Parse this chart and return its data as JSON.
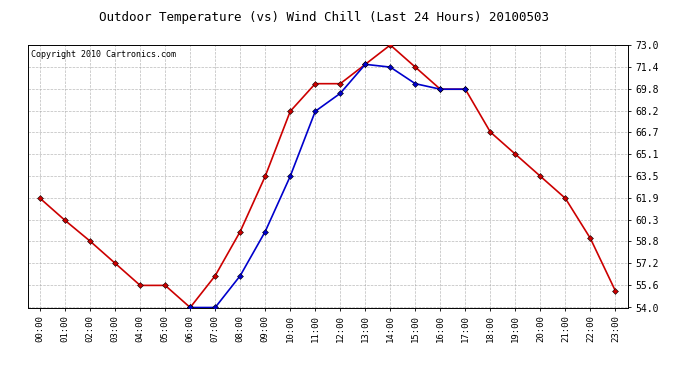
{
  "title": "Outdoor Temperature (vs) Wind Chill (Last 24 Hours) 20100503",
  "copyright": "Copyright 2010 Cartronics.com",
  "hours": [
    "00:00",
    "01:00",
    "02:00",
    "03:00",
    "04:00",
    "05:00",
    "06:00",
    "07:00",
    "08:00",
    "09:00",
    "10:00",
    "11:00",
    "12:00",
    "13:00",
    "14:00",
    "15:00",
    "16:00",
    "17:00",
    "18:00",
    "19:00",
    "20:00",
    "21:00",
    "22:00",
    "23:00"
  ],
  "temp": [
    61.9,
    60.3,
    58.8,
    57.2,
    55.6,
    55.6,
    54.0,
    56.3,
    59.5,
    63.5,
    68.2,
    70.2,
    70.2,
    71.6,
    73.0,
    71.4,
    69.8,
    69.8,
    66.7,
    65.1,
    63.5,
    61.9,
    59.0,
    55.2
  ],
  "windchill": [
    null,
    null,
    null,
    null,
    null,
    null,
    54.0,
    54.0,
    56.3,
    59.5,
    63.5,
    68.2,
    69.5,
    71.6,
    71.4,
    70.2,
    69.8,
    69.8,
    null,
    null,
    null,
    null,
    null,
    null
  ],
  "temp_color": "#cc0000",
  "windchill_color": "#0000cc",
  "background_color": "#ffffff",
  "grid_color": "#aaaaaa",
  "ylim": [
    54.0,
    73.0
  ],
  "yticks": [
    54.0,
    55.6,
    57.2,
    58.8,
    60.3,
    61.9,
    63.5,
    65.1,
    66.7,
    68.2,
    69.8,
    71.4,
    73.0
  ],
  "title_fontsize": 9,
  "copyright_fontsize": 6,
  "marker": "D",
  "marker_size": 3,
  "linewidth": 1.2
}
